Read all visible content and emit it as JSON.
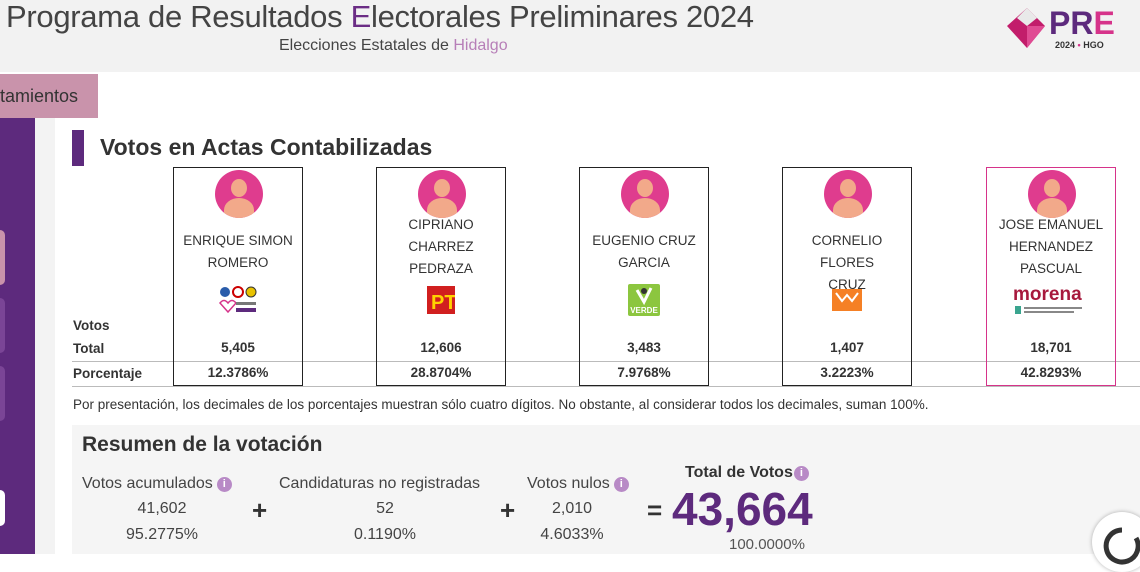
{
  "header": {
    "title_pre": "Programa de Resultados ",
    "title_e": "E",
    "title_post": "lectorales Preliminares 2024",
    "subtitle_pre": "Elecciones Estatales de ",
    "subtitle_state": "Hidalgo",
    "logo_text": "PREP",
    "logo_sub": "2024 • HGO"
  },
  "tab": {
    "label": "tamientos"
  },
  "section": {
    "title": "Votos en Actas Contabilizadas",
    "row_votos": "Votos",
    "row_total": "Total",
    "row_pct": "Porcentaje"
  },
  "candidates": [
    {
      "name_lines": [
        "ENRIQUE SIMON",
        "ROMERO"
      ],
      "party": "PAN-PRI-PRD coalition",
      "total": "5,405",
      "pct": "12.3786%"
    },
    {
      "name_lines": [
        "CIPRIANO",
        "CHARREZ",
        "PEDRAZA"
      ],
      "party": "PT",
      "total": "12,606",
      "pct": "28.8704%"
    },
    {
      "name_lines": [
        "EUGENIO CRUZ",
        "GARCIA"
      ],
      "party": "VERDE",
      "total": "3,483",
      "pct": "7.9768%"
    },
    {
      "name_lines": [
        "CORNELIO FLORES",
        "CRUZ"
      ],
      "party": "Movimiento Ciudadano",
      "total": "1,407",
      "pct": "3.2223%"
    },
    {
      "name_lines": [
        "JOSE EMANUEL",
        "HERNANDEZ",
        "PASCUAL"
      ],
      "party": "morena",
      "total": "18,701",
      "pct": "42.8293%"
    }
  ],
  "note": "Por presentación, los decimales de los porcentajes muestran sólo cuatro dígitos. No obstante, al considerar todos los decimales, suman 100%.",
  "summary": {
    "title": "Resumen de la votación",
    "acumulados": {
      "label": "Votos acumulados",
      "value": "41,602",
      "pct": "95.2775%"
    },
    "no_registradas": {
      "label": "Candidaturas no registradas",
      "value": "52",
      "pct": "0.1190%"
    },
    "nulos": {
      "label": "Votos nulos",
      "value": "2,010",
      "pct": "4.6033%"
    },
    "total": {
      "label": "Total de Votos",
      "value": "43,664",
      "pct": "100.0000%"
    },
    "plus": "+",
    "equals": "=",
    "info": "i"
  },
  "colors": {
    "brand_purple": "#5d2a7d",
    "winner_border": "#d6338a",
    "avatar": "#df3c8e"
  }
}
